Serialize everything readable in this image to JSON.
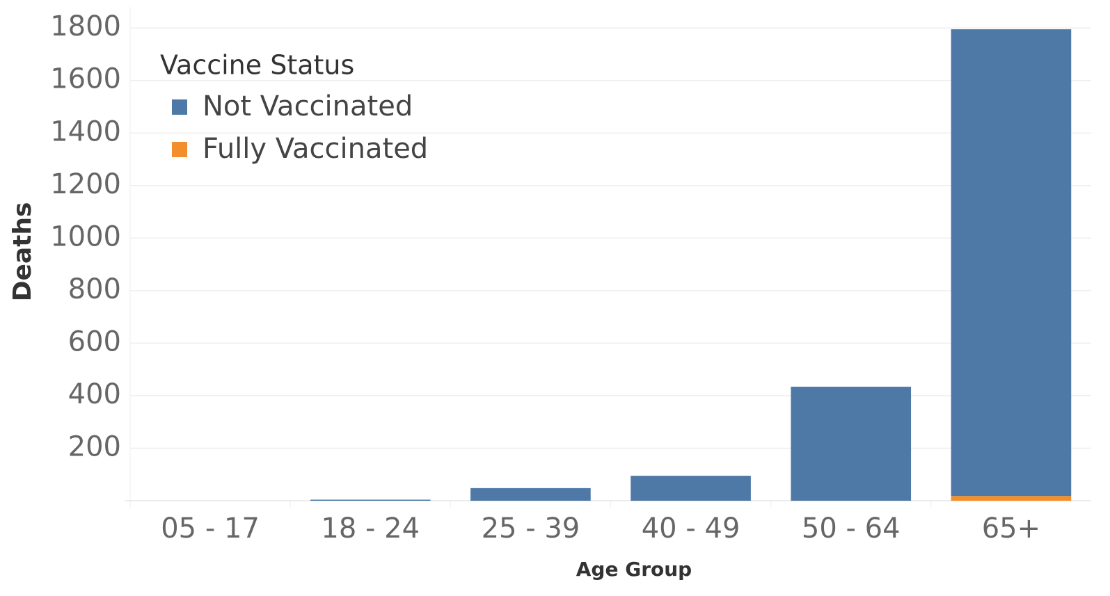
{
  "chart_data": {
    "type": "stacked_bar",
    "x_label": "Age Group",
    "y_label": "Deaths",
    "legend_title": "Vaccine Status",
    "legend": "top-left",
    "categories": [
      "05 - 17",
      "18 - 24",
      "25 - 39",
      "40 - 49",
      "50 - 64",
      "65+"
    ],
    "series": [
      {
        "name": "Not Vaccinated",
        "color": "#4e79a7",
        "values": [
          0,
          4,
          48,
          95,
          434,
          1777
        ]
      },
      {
        "name": "Fully Vaccinated",
        "color": "#f28e2b",
        "values": [
          0,
          0,
          0,
          0,
          0,
          18
        ]
      }
    ],
    "stack_order_bottom_first": [
      "Fully Vaccinated",
      "Not Vaccinated"
    ],
    "ylim": [
      0,
      1880
    ],
    "yticks": [
      200,
      400,
      600,
      800,
      1000,
      1200,
      1400,
      1600,
      1800
    ],
    "grid": true
  }
}
